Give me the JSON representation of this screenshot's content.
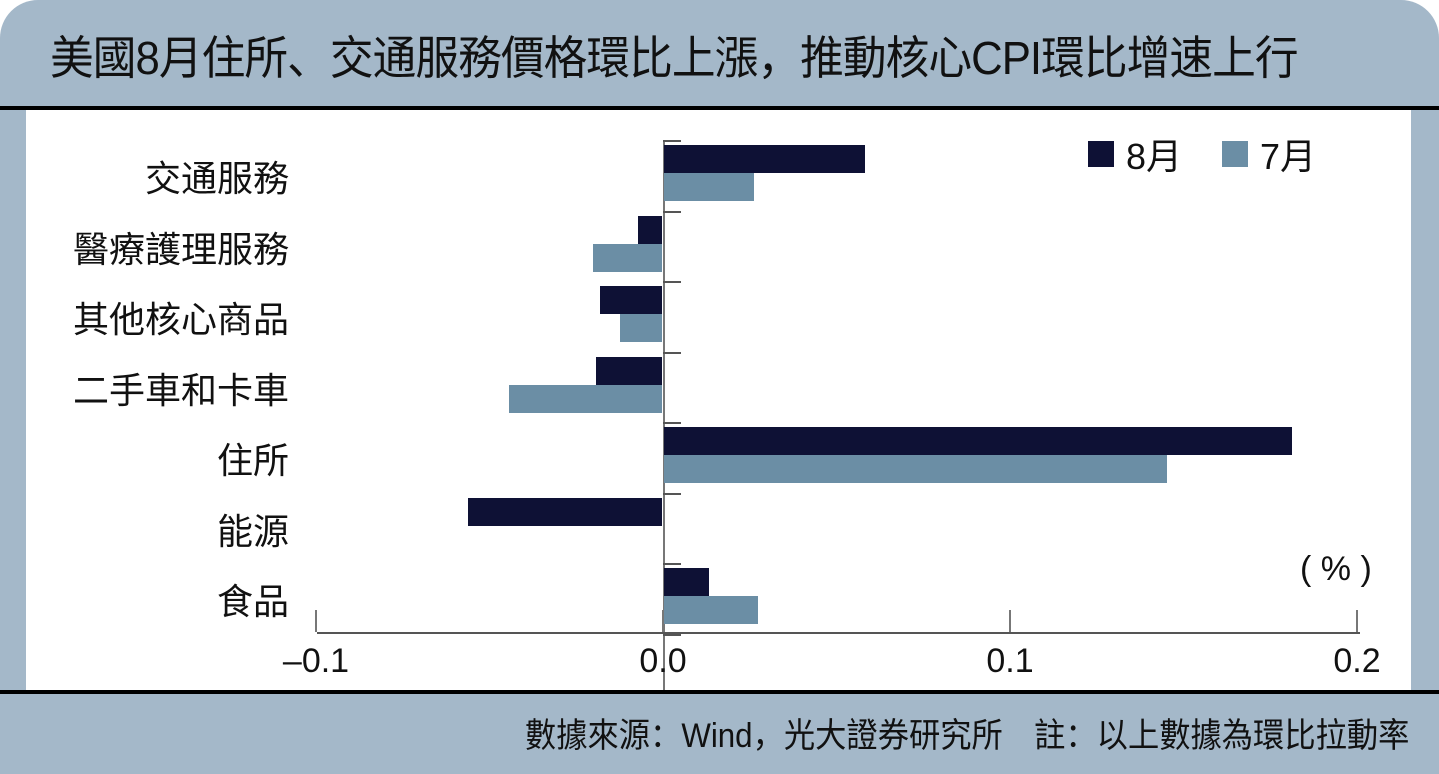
{
  "title": "美國8月住所、交通服務價格環比上漲，推動核心CPI環比增速上行",
  "footer": "數據來源：Wind，光大證券研究所　註：以上數據為環比拉動率",
  "colors": {
    "aug": "#0e1135",
    "jul": "#6b8ea5",
    "frame": "#a4b8c9"
  },
  "legend": [
    {
      "label": "8月",
      "color": "#0e1135"
    },
    {
      "label": "7月",
      "color": "#6b8ea5"
    }
  ],
  "unit": "( % )",
  "chart_data": {
    "type": "bar",
    "orientation": "horizontal",
    "title": "美國8月住所、交通服務價格環比上漲，推動核心CPI環比增速上行",
    "categories": [
      "交通服務",
      "醫療護理服務",
      "其他核心商品",
      "二手車和卡車",
      "住所",
      "能源",
      "食品"
    ],
    "series": [
      {
        "name": "8月",
        "values": [
          0.058,
          -0.007,
          -0.018,
          -0.019,
          0.181,
          -0.056,
          0.013
        ]
      },
      {
        "name": "7月",
        "values": [
          0.026,
          -0.02,
          -0.012,
          -0.044,
          0.145,
          0.0,
          0.027
        ]
      }
    ],
    "xlabel": "",
    "ylabel": "",
    "unit": "%",
    "xlim": [
      -0.1,
      0.2
    ],
    "xticks": [
      "–0.1",
      "0.0",
      "0.1",
      "0.2"
    ],
    "legend_position": "top-right",
    "grid": false,
    "note": "註：以上數據為環比拉動率",
    "source": "數據來源：Wind，光大證券研究所"
  }
}
